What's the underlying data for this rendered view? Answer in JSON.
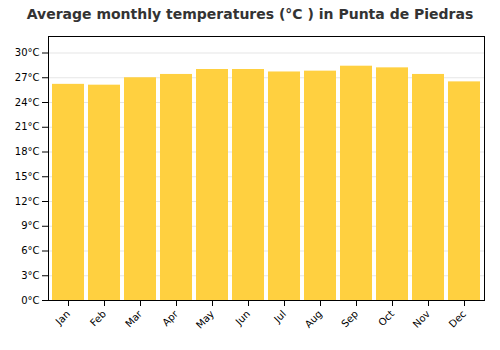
{
  "chart_data": {
    "type": "bar",
    "title": "Average monthly temperatures (°C ) in Punta de Piedras",
    "categories": [
      "Jan",
      "Feb",
      "Mar",
      "Apr",
      "May",
      "Jun",
      "Jul",
      "Aug",
      "Sep",
      "Oct",
      "Nov",
      "Dec"
    ],
    "values": [
      26.2,
      26.1,
      27.0,
      27.4,
      28.0,
      28.0,
      27.7,
      27.8,
      28.4,
      28.2,
      27.4,
      26.5
    ],
    "color": "#FFD040",
    "ylim": [
      0,
      32
    ],
    "yticks": [
      {
        "value": 0,
        "label": "0°C"
      },
      {
        "value": 3,
        "label": "3°C"
      },
      {
        "value": 6,
        "label": "6°C"
      },
      {
        "value": 9,
        "label": "9°C"
      },
      {
        "value": 12,
        "label": "12°C"
      },
      {
        "value": 15,
        "label": "15°C"
      },
      {
        "value": 18,
        "label": "18°C"
      },
      {
        "value": 21,
        "label": "21°C"
      },
      {
        "value": 24,
        "label": "24°C"
      },
      {
        "value": 27,
        "label": "27°C"
      },
      {
        "value": 30,
        "label": "30°C"
      }
    ],
    "grid": true
  }
}
